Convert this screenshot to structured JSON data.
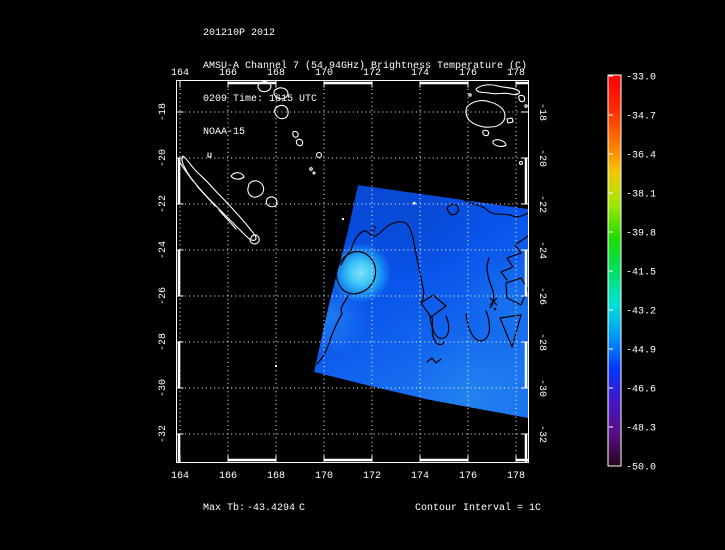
{
  "window": {
    "background_color": "#000000",
    "text_color": "#ffffff"
  },
  "header": {
    "line1": "201210P 2012",
    "line2": "AMSU-A Channel 7 (54.94GHz) Brightness Temperature (C)",
    "line3": "0209 Time: 1615 UTC",
    "line4": "NOAA-15"
  },
  "footer": {
    "max_tb_label": "Max Tb:",
    "max_tb_value": "-43.4294",
    "max_tb_unit": "C",
    "contour_interval": "Contour Interval = 1C"
  },
  "chart_data": {
    "type": "heatmap",
    "title": "AMSU-A Channel 7 (54.94GHz) Brightness Temperature (C)",
    "dataset": "201210P 2012",
    "time": "0209 Time: 1615 UTC",
    "satellite": "NOAA-15",
    "x_axis": {
      "ticks": [
        "164",
        "166",
        "168",
        "170",
        "172",
        "174",
        "176",
        "178"
      ],
      "range": [
        163.8,
        178.7
      ],
      "units": "degrees longitude"
    },
    "y_axis": {
      "ticks": [
        "-18",
        "-20",
        "-22",
        "-24",
        "-26",
        "-28",
        "-30",
        "-32"
      ],
      "range": [
        -33.4,
        -16.6
      ],
      "units": "degrees latitude"
    },
    "grid": "dotted white graticule at 2-degree intervals",
    "colorbar": {
      "ticks": [
        "-33.0",
        "-34.7",
        "-36.4",
        "-38.1",
        "-39.8",
        "-41.5",
        "-43.2",
        "-44.9",
        "-46.6",
        "-48.3",
        "-50.0"
      ],
      "max": -33.0,
      "min": -50.0,
      "units": "C",
      "position": "right",
      "colors_top_to_bottom": [
        "#fe0000",
        "#ff2800",
        "#ff7000",
        "#f5c800",
        "#9ae800",
        "#1edc00",
        "#00e060",
        "#00e2d4",
        "#009af6",
        "#0038fa",
        "#4416c8",
        "#5a0e86",
        "#230618"
      ]
    },
    "max_tb_c": -43.4294,
    "contour_interval_c": 1,
    "contour_label": "43",
    "swath": {
      "description": "blue brightness-temperature swath (mostly -44 to -46 C) with bright cyan maximum spot near 170.8E, -25.0S",
      "approx_extent_lon": [
        170.6,
        178.7
      ],
      "approx_extent_lat": [
        -22.6,
        -30.8
      ],
      "base_color": "#0a55ec",
      "max_spot_color": "#7fe0fa"
    },
    "coastlines_depicted": [
      "New Caledonia",
      "Loyalty Islands",
      "Vanuatu",
      "Fiji"
    ]
  }
}
